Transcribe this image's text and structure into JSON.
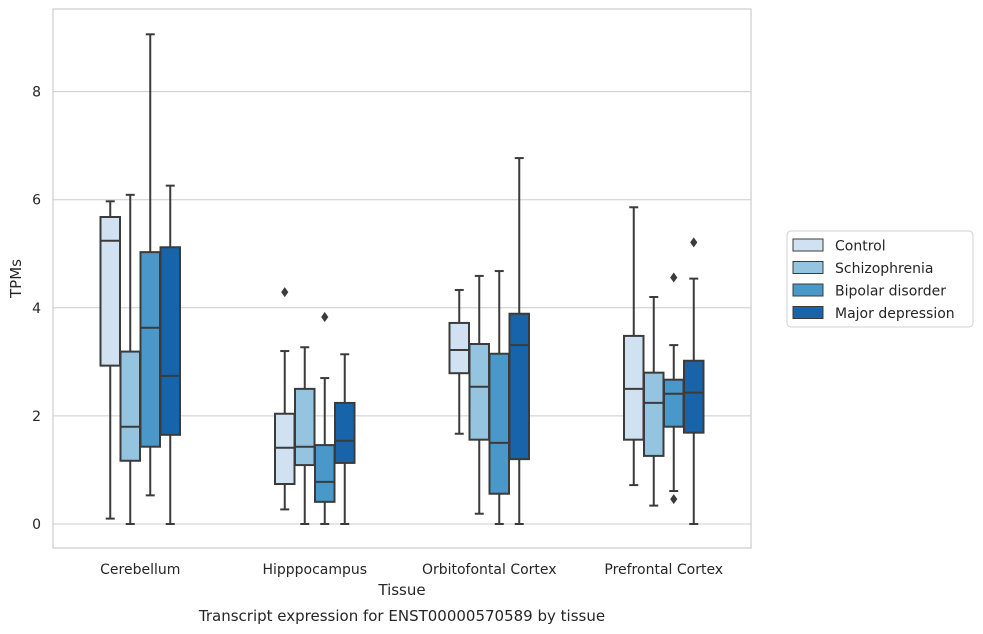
{
  "chart_data": {
    "type": "box",
    "caption": "Transcript expression for ENST00000570589 by tissue",
    "xlabel": "Tissue",
    "ylabel": "TPMs",
    "ylim": [
      -0.4,
      9.7
    ],
    "yticks": [
      0,
      2,
      4,
      6,
      8
    ],
    "grid": "horizontal",
    "legend_position": "right",
    "categories": [
      "Cerebellum",
      "Hipppocampus",
      "Orbitofontal Cortex",
      "Prefrontal Cortex"
    ],
    "series": [
      {
        "name": "Control",
        "color": "#d0e1f2",
        "boxes": [
          {
            "whisker_low": 0.1,
            "q1": 2.93,
            "median": 5.24,
            "q3": 5.68,
            "whisker_high": 5.97,
            "outliers": []
          },
          {
            "whisker_low": 0.27,
            "q1": 0.74,
            "median": 1.41,
            "q3": 2.04,
            "whisker_high": 3.2,
            "outliers": [
              4.29
            ]
          },
          {
            "whisker_low": 1.67,
            "q1": 2.79,
            "median": 3.22,
            "q3": 3.72,
            "whisker_high": 4.33,
            "outliers": []
          },
          {
            "whisker_low": 0.72,
            "q1": 1.56,
            "median": 2.5,
            "q3": 3.48,
            "whisker_high": 5.86,
            "outliers": []
          }
        ]
      },
      {
        "name": "Schizophrenia",
        "color": "#94c4df",
        "boxes": [
          {
            "whisker_low": 0.0,
            "q1": 1.17,
            "median": 1.8,
            "q3": 3.19,
            "whisker_high": 6.09,
            "outliers": []
          },
          {
            "whisker_low": 0.0,
            "q1": 1.09,
            "median": 1.43,
            "q3": 2.5,
            "whisker_high": 3.27,
            "outliers": []
          },
          {
            "whisker_low": 0.19,
            "q1": 1.56,
            "median": 2.54,
            "q3": 3.33,
            "whisker_high": 4.59,
            "outliers": []
          },
          {
            "whisker_low": 0.34,
            "q1": 1.26,
            "median": 2.24,
            "q3": 2.8,
            "whisker_high": 4.2,
            "outliers": []
          }
        ]
      },
      {
        "name": "Bipolar disorder",
        "color": "#4a98c9",
        "boxes": [
          {
            "whisker_low": 0.53,
            "q1": 1.43,
            "median": 3.63,
            "q3": 5.03,
            "whisker_high": 9.06,
            "outliers": []
          },
          {
            "whisker_low": 0.0,
            "q1": 0.41,
            "median": 0.78,
            "q3": 1.46,
            "whisker_high": 2.7,
            "outliers": [
              3.83
            ]
          },
          {
            "whisker_low": 0.0,
            "q1": 0.56,
            "median": 1.5,
            "q3": 3.15,
            "whisker_high": 4.68,
            "outliers": []
          },
          {
            "whisker_low": 0.61,
            "q1": 1.8,
            "median": 2.41,
            "q3": 2.67,
            "whisker_high": 3.31,
            "outliers": [
              0.46,
              4.56
            ]
          }
        ]
      },
      {
        "name": "Major depression",
        "color": "#1764ab",
        "boxes": [
          {
            "whisker_low": 0.0,
            "q1": 1.65,
            "median": 2.74,
            "q3": 5.12,
            "whisker_high": 6.26,
            "outliers": []
          },
          {
            "whisker_low": 0.0,
            "q1": 1.13,
            "median": 1.54,
            "q3": 2.24,
            "whisker_high": 3.14,
            "outliers": []
          },
          {
            "whisker_low": 0.0,
            "q1": 1.2,
            "median": 3.31,
            "q3": 3.89,
            "whisker_high": 6.77,
            "outliers": []
          },
          {
            "whisker_low": 0.0,
            "q1": 1.69,
            "median": 2.43,
            "q3": 3.02,
            "whisker_high": 4.54,
            "outliers": [
              5.21
            ]
          }
        ]
      }
    ]
  }
}
